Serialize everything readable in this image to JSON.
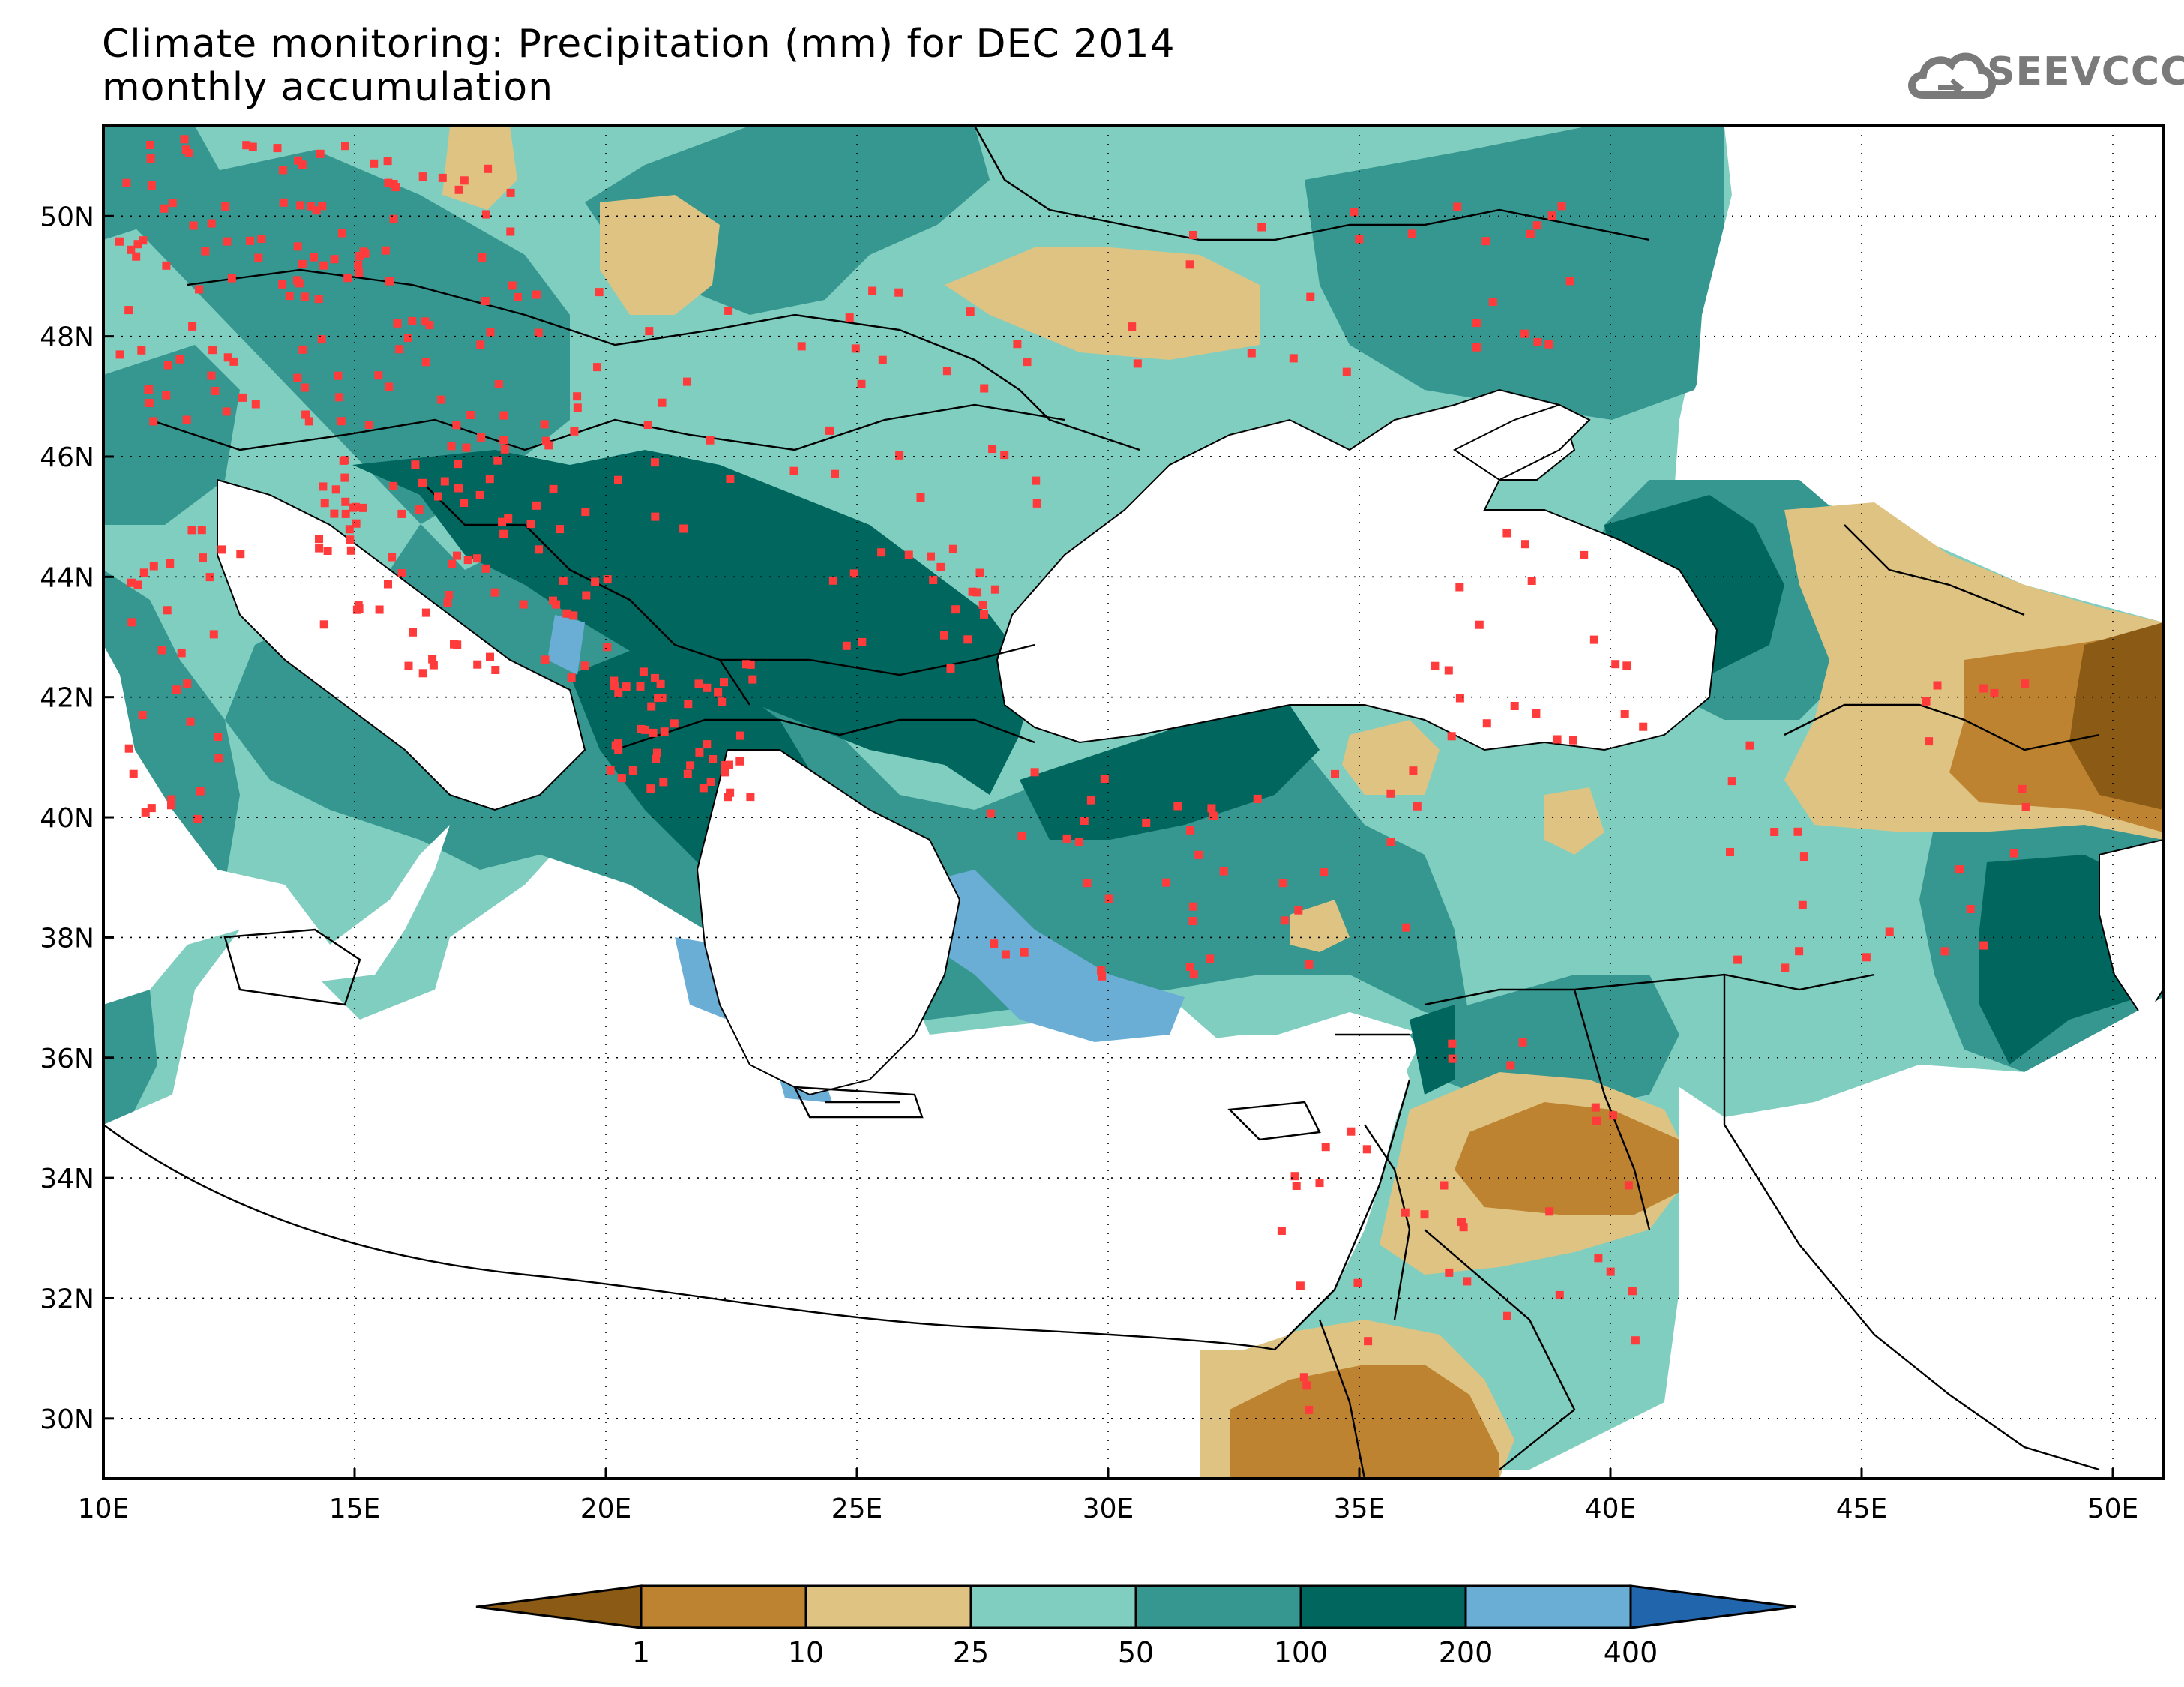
{
  "title": {
    "line1": "Climate monitoring: Precipitation (mm) for DEC 2014",
    "line2": "monthly accumulation"
  },
  "logo": {
    "text": "SEEVCCC",
    "icon": "cloud-icon"
  },
  "axes": {
    "x_ticks": [
      "10E",
      "15E",
      "20E",
      "25E",
      "30E",
      "35E",
      "40E",
      "45E",
      "50E"
    ],
    "y_ticks": [
      "50N",
      "48N",
      "46N",
      "44N",
      "42N",
      "40N",
      "38N",
      "36N",
      "34N",
      "32N",
      "30N"
    ],
    "lon_range": [
      10,
      51
    ],
    "lat_range": [
      29,
      51.5
    ]
  },
  "colorbar": {
    "labels": [
      "1",
      "10",
      "25",
      "50",
      "100",
      "200",
      "400"
    ],
    "colors": [
      "#8b5a14",
      "#bd8330",
      "#dfc382",
      "#80cec0",
      "#35978f",
      "#01665e",
      "#6aaed6",
      "#2166ac"
    ]
  },
  "legend_meaning": {
    "stations": "#ff3b3b",
    "land_no_data": "#ffffff"
  }
}
